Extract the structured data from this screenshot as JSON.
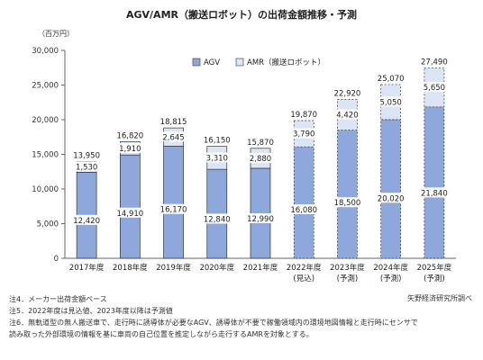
{
  "chart_data": {
    "type": "bar",
    "title": "AGV/AMR（搬送ロボット）の出荷金額推移・予測",
    "unit_label": "（百万円）",
    "categories": [
      "2017年度",
      "2018年度",
      "2019年度",
      "2020年度",
      "2021年度",
      "2022年度",
      "2023年度",
      "2024年度",
      "2025年度"
    ],
    "category_sublabels": [
      "",
      "",
      "",
      "",
      "",
      "(見込)",
      "(予測)",
      "(予測)",
      "(予測)"
    ],
    "series": [
      {
        "name": "AGV",
        "values": [
          12420,
          14910,
          16170,
          12840,
          12990,
          16080,
          18500,
          20020,
          21840
        ]
      },
      {
        "name": "AMR（搬送ロボット）",
        "values": [
          1530,
          1910,
          2645,
          3310,
          2880,
          3790,
          4420,
          5050,
          5650
        ]
      }
    ],
    "value_labels": {
      "agv": [
        "12,420",
        "14,910",
        "16,170",
        "12,840",
        "12,990",
        "16,080",
        "18,500",
        "20,020",
        "21,840"
      ],
      "amr": [
        "1,530",
        "1,910",
        "2,645",
        "3,310",
        "2,880",
        "3,790",
        "4,420",
        "5,050",
        "5,650"
      ],
      "total": [
        "13,950",
        "16,820",
        "18,815",
        "16,150",
        "15,870",
        "19,870",
        "22,920",
        "25,070",
        "27,490"
      ]
    },
    "ylim": [
      0,
      30000
    ],
    "yticks": [
      0,
      5000,
      10000,
      15000,
      20000,
      25000,
      30000
    ],
    "ytick_labels": [
      "0",
      "5,000",
      "10,000",
      "15,000",
      "20,000",
      "25,000",
      "30,000"
    ],
    "stacked": true,
    "grid": false,
    "legend_position": "top-center",
    "projected_from_index": 5,
    "colors": {
      "agv": "#8fa8dc",
      "amr": "#dbe5f6",
      "stroke": "#333333"
    }
  },
  "notes": [
    "注4．メーカー出荷金額ベース",
    "注5．2022年度は見込値、2023年度以降は予測値",
    "注6．無軌道型の無人搬送車で、走行時に誘導体が必要なAGV、誘導体が不要で稼働領域内の環境地図情報と走行時にセンサで",
    "読み取った外部環境の情報を基に車両の自己位置を推定しながら走行するAMRを対象とする。"
  ],
  "source": "矢野経済研究所調べ"
}
